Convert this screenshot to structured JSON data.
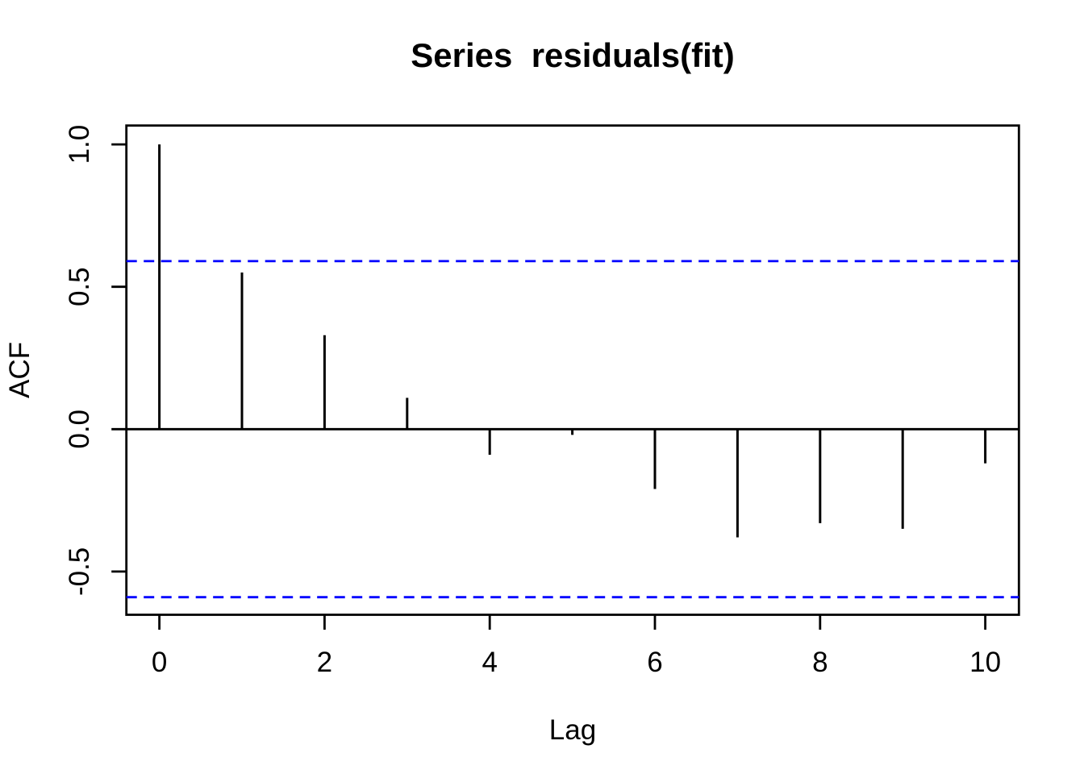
{
  "chart_data": {
    "type": "bar",
    "subtype": "acf-stem-plot",
    "title": "Series  residuals(fit)",
    "xlabel": "Lag",
    "ylabel": "ACF",
    "x": [
      0,
      1,
      2,
      3,
      4,
      5,
      6,
      7,
      8,
      9,
      10
    ],
    "values": [
      1.0,
      0.55,
      0.33,
      0.11,
      -0.09,
      -0.02,
      -0.21,
      -0.38,
      -0.33,
      -0.35,
      -0.12
    ],
    "confidence_lines": [
      0.59,
      -0.59
    ],
    "xticks": [
      0,
      2,
      4,
      6,
      8,
      10
    ],
    "xtick_labels": [
      "0",
      "2",
      "4",
      "6",
      "8",
      "10"
    ],
    "ytick_values": [
      1.0,
      0.5,
      0.0,
      -0.5
    ],
    "ytick_labels": [
      "1.0",
      "0.5",
      "0.0",
      "-0.5"
    ],
    "xlim": [
      -0.4,
      10.4
    ],
    "ylim": [
      -0.65,
      1.07
    ],
    "grid": false,
    "legend": null,
    "colors": {
      "spike": "#000000",
      "axis": "#000000",
      "text": "#000000",
      "confidence_line": "#0000FF",
      "background": "#FFFFFF"
    }
  }
}
